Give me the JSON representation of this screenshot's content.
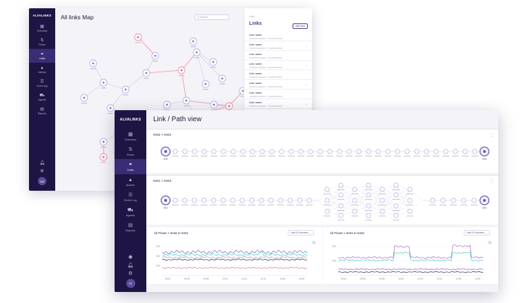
{
  "back": {
    "brand": "ALVALINKS",
    "title": "All links Map",
    "search_placeholder": "Q Search",
    "nav": [
      {
        "label": "Overview",
        "icon": "grid-icon",
        "glyph": "▦"
      },
      {
        "label": "Flows",
        "icon": "flows-icon",
        "glyph": "⇅"
      },
      {
        "label": "Links",
        "icon": "link-icon",
        "glyph": "⚭",
        "active": true
      },
      {
        "label": "Alarms",
        "icon": "warning-icon",
        "glyph": "▲"
      },
      {
        "label": "Event log",
        "icon": "list-icon",
        "glyph": "☰"
      },
      {
        "label": "Agents",
        "icon": "car-icon",
        "glyph": "⛟"
      },
      {
        "label": "Reports",
        "icon": "report-icon",
        "glyph": "▤"
      }
    ],
    "avatar": "AM",
    "panel": {
      "breadcrumb": "Links",
      "title": "Links",
      "add_label": "Add New",
      "items": [
        {
          "name": "Link name",
          "sub": "ffca8f8b6ed8a6fb5  ·  ffca8f8b6ed8a6"
        },
        {
          "name": "Link name",
          "sub": "ffca8f8b6ed8a6fb5  ·  ffca8f8b6ed8a6"
        },
        {
          "name": "Link name",
          "sub": "ffca8f8b6ed8a6fb5  ·  ffca8f8b6ed8a6"
        },
        {
          "name": "Link name",
          "sub": "ffca8f8b6ed8a6fb5  ·  ffca8f8b6ed8a6"
        },
        {
          "name": "Link name",
          "sub": "ffca8f8b6ed8a6fb5  ·  ffca8f8b6ed8a6"
        },
        {
          "name": "Link name",
          "sub": "ffca8f8b6ed8a6fb5  ·  ffca8f8b6ed8a6"
        },
        {
          "name": "Link name",
          "sub": "ffca8f8b6ed8a6fb5  ·  ffca8f8b6ed8a6"
        },
        {
          "name": "Link name",
          "sub": "ffca8f8b6ed8a6fb5  ·  ffca8f8b6ed8a6"
        }
      ]
    }
  },
  "front": {
    "brand": "ALVALINKS",
    "title": "Link / Path view",
    "nav": [
      {
        "label": "Overview",
        "icon": "grid-icon",
        "glyph": "▦"
      },
      {
        "label": "Flows",
        "icon": "flows-icon",
        "glyph": "⇅"
      },
      {
        "label": "Links",
        "icon": "link-icon",
        "glyph": "⚭",
        "active": true
      },
      {
        "label": "Alarms",
        "icon": "warning-icon",
        "glyph": "▲"
      },
      {
        "label": "Event Log",
        "icon": "list-icon",
        "glyph": "☰"
      },
      {
        "label": "Agents",
        "icon": "car-icon",
        "glyph": "⛟"
      },
      {
        "label": "Reports",
        "icon": "report-icon",
        "glyph": "▤"
      }
    ],
    "avatar": "Ar",
    "paths": [
      {
        "title": "test2 > test1",
        "start": "test",
        "end": "test"
      },
      {
        "title": "test1 > test2",
        "start": "test",
        "end": "test"
      }
    ],
    "flows": [
      {
        "title": "All Flows > test2 to test1",
        "range": "Last 15 minutes",
        "yticks": [
          "400",
          "300",
          "200"
        ],
        "xticks": [
          "09:54",
          "09:56",
          "09:58",
          "10:00",
          "10:02",
          "10:04",
          "10:06",
          "10:08"
        ]
      },
      {
        "title": "All Flows > test1 to test2",
        "range": "Last 15 minutes",
        "yticks": [
          "400",
          "200"
        ],
        "xticks": [
          "09:54",
          "09:56",
          "09:58",
          "10:00",
          "10:02",
          "10:04",
          "10:06",
          "10:08"
        ]
      }
    ]
  },
  "colors": {
    "sidebar": "#1f1544",
    "accent": "#4a3b8f",
    "alert": "#e26d8e",
    "teal": "#3fd1b5"
  }
}
